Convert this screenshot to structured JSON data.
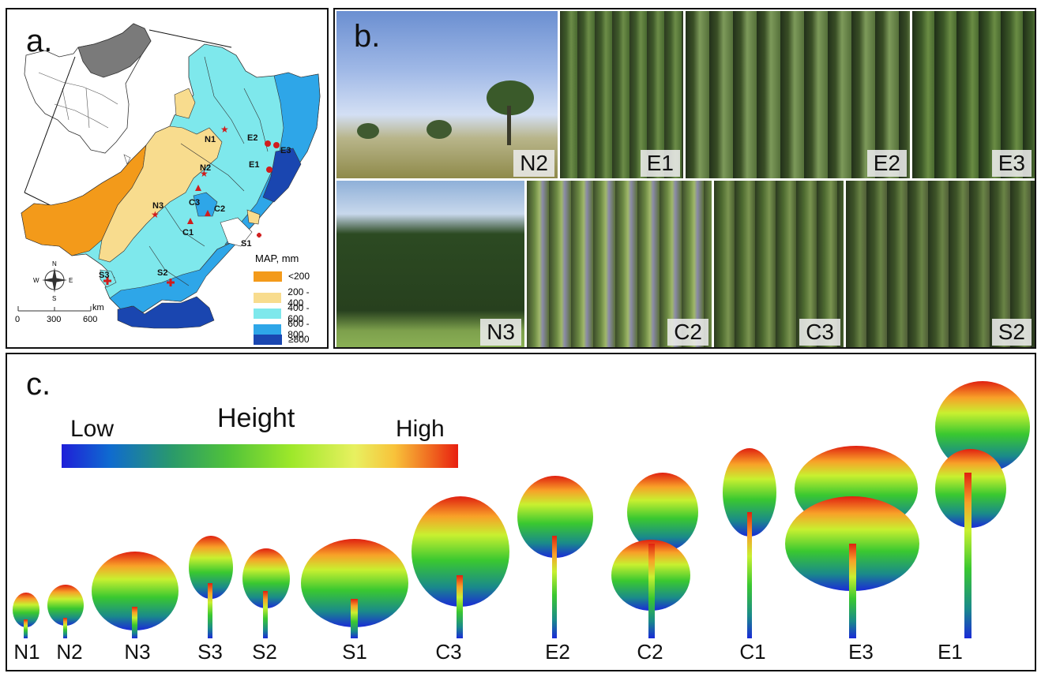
{
  "panel_a": {
    "letter": "a.",
    "legend_title": "MAP, mm",
    "legend": [
      {
        "label": "<200",
        "color": "#f39a1a"
      },
      {
        "label": "200 - 400",
        "color": "#f8dc8e"
      },
      {
        "label": "400 - 600",
        "color": "#7ee8ec"
      },
      {
        "label": "600 - 800",
        "color": "#2ea6e8"
      },
      {
        "label": "≥800",
        "color": "#1a46b0"
      }
    ],
    "compass": {
      "n": "N",
      "s": "S",
      "e": "E",
      "w": "W"
    },
    "scale": {
      "unit": "km",
      "ticks": [
        "0",
        "300",
        "600"
      ]
    },
    "sites": [
      "N1",
      "N2",
      "N3",
      "E1",
      "E2",
      "E3",
      "C1",
      "C2",
      "C3",
      "S1",
      "S2",
      "S3"
    ]
  },
  "panel_b": {
    "letter": "b.",
    "photos": [
      "N2",
      "E1",
      "E2",
      "E3",
      "N3",
      "C2",
      "C3",
      "S2"
    ]
  },
  "panel_c": {
    "letter": "c.",
    "height_bar": {
      "title": "Height",
      "low": "Low",
      "high": "High"
    },
    "trees": [
      "N1",
      "N2",
      "N3",
      "S3",
      "S2",
      "S1",
      "C3",
      "E2",
      "C2",
      "C1",
      "E3",
      "E1"
    ]
  }
}
